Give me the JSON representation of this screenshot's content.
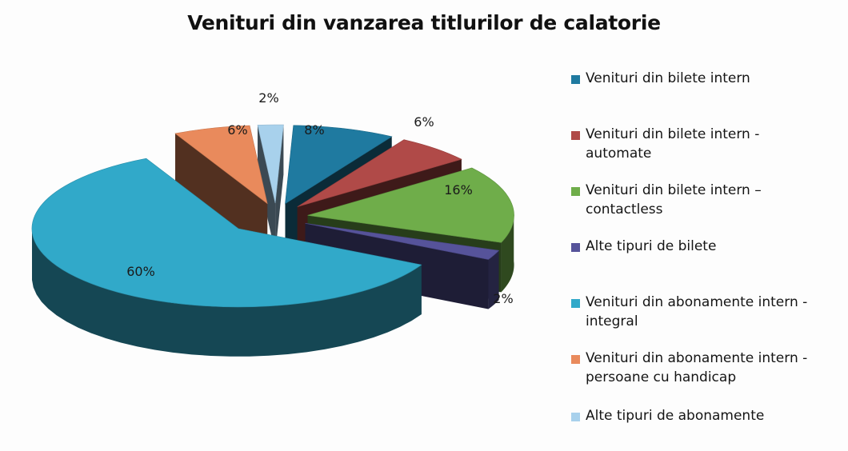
{
  "chart_data": {
    "type": "pie",
    "variant": "3d-exploded",
    "title": "Venituri din vanzarea titlurilor de calatorie",
    "legend_position": "right",
    "slices": [
      {
        "name": "Venituri din bilete intern",
        "value": 8,
        "label": "8%",
        "color": "#1f7aa0"
      },
      {
        "name": "Venituri din bilete intern - automate",
        "value": 6,
        "label": "6%",
        "color": "#b04a48"
      },
      {
        "name": "Venituri din bilete intern – contactless",
        "value": 16,
        "label": "16%",
        "color": "#6fad4a"
      },
      {
        "name": "Alte tipuri de bilete",
        "value": 2,
        "label": "2%",
        "color": "#56539a"
      },
      {
        "name": "Venituri din abonamente intern - integral",
        "value": 60,
        "label": "60%",
        "color": "#31a9c9"
      },
      {
        "name": "Venituri din abonamente intern - persoane cu handicap",
        "value": 6,
        "label": "6%",
        "color": "#e98a5c"
      },
      {
        "name": "Alte tipuri de abonamente",
        "value": 2,
        "label": "2%",
        "color": "#a8d1ec"
      }
    ],
    "legend_lines": [
      [
        "Venituri din bilete intern"
      ],
      [
        "Venituri din bilete intern -",
        "automate"
      ],
      [
        "Venituri din bilete intern –",
        "contactless"
      ],
      [
        "Alte tipuri de bilete"
      ],
      [
        "Venituri din abonamente intern -",
        "integral"
      ],
      [
        "Venituri din abonamente intern -",
        "persoane cu handicap"
      ],
      [
        "Alte tipuri de abonamente"
      ]
    ]
  }
}
